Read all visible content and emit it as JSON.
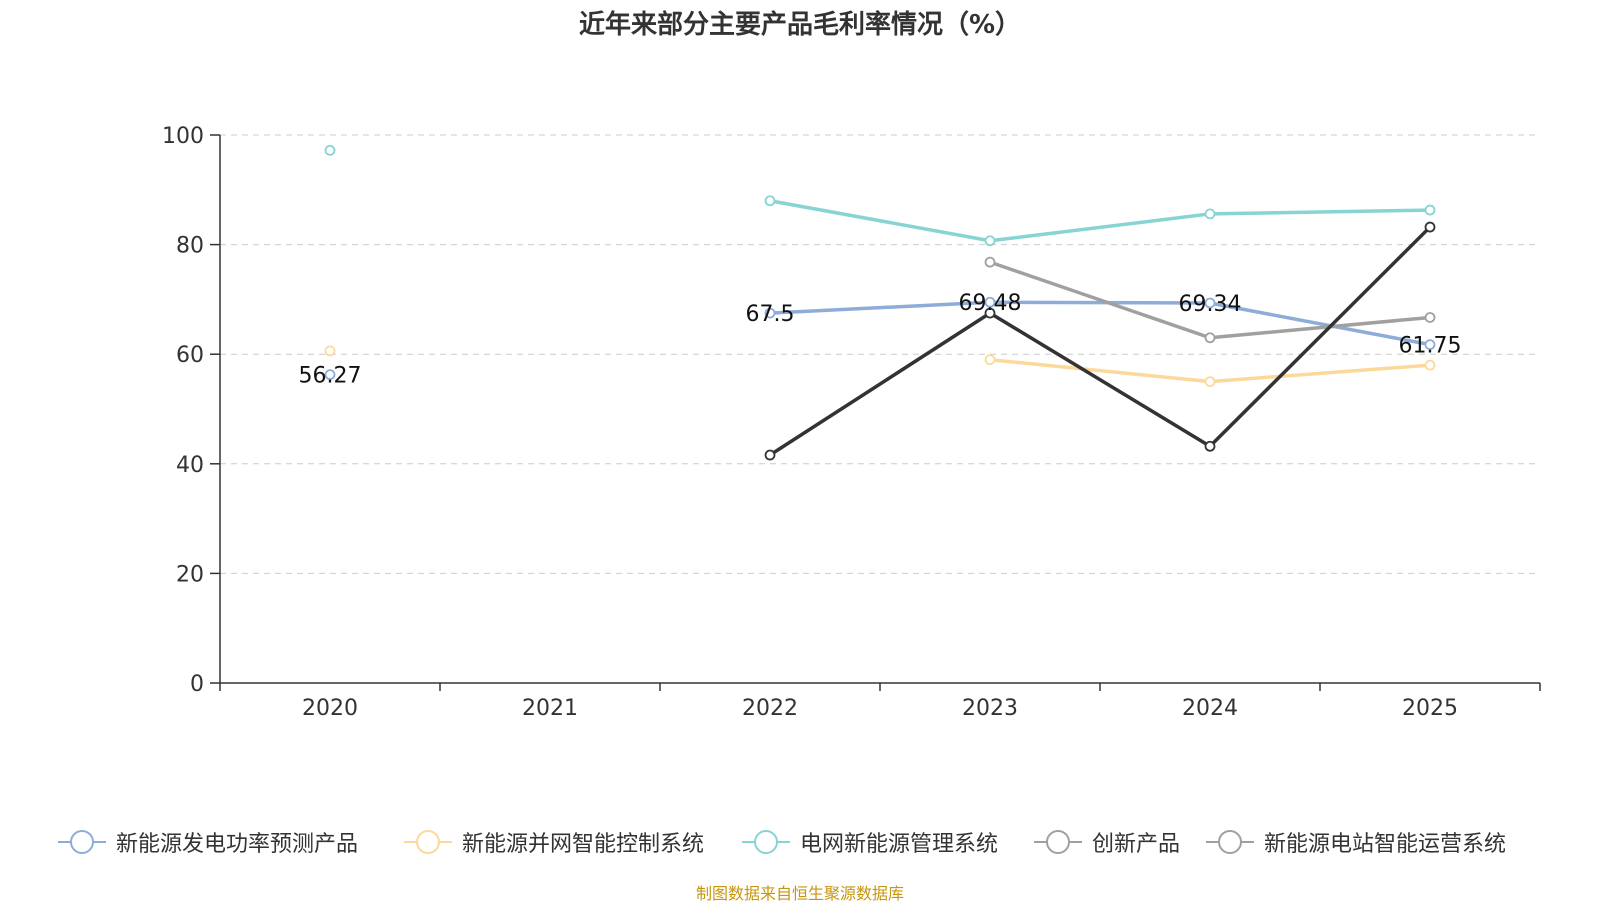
{
  "chart_data": {
    "type": "line",
    "title": "近年来部分主要产品毛利率情况（%）",
    "categories": [
      "2020",
      "2021",
      "2022",
      "2023",
      "2024",
      "2025"
    ],
    "ylim": [
      0,
      100
    ],
    "yticks": [
      0,
      20,
      40,
      60,
      80,
      100
    ],
    "grid": true,
    "legend_position": "bottom",
    "series": [
      {
        "name": "新能源发电功率预测产品",
        "color": "#8eacd8",
        "values": [
          56.27,
          null,
          67.5,
          69.48,
          69.34,
          61.75
        ],
        "labeled": true
      },
      {
        "name": "新能源并网智能控制系统",
        "color": "#fcd99a",
        "values": [
          60.6,
          null,
          null,
          59.0,
          55.0,
          58.0
        ],
        "labeled": false
      },
      {
        "name": "电网新能源管理系统",
        "color": "#86d4d4",
        "values": [
          97.2,
          null,
          88.0,
          80.7,
          85.6,
          86.3
        ],
        "labeled": false
      },
      {
        "name": "创新产品",
        "color": "#a0a0a0",
        "values": [
          null,
          null,
          null,
          76.8,
          63.0,
          66.7
        ],
        "labeled": false
      },
      {
        "name": "新能源电站智能运营系统",
        "color": "#333333",
        "values": [
          null,
          null,
          41.6,
          67.5,
          43.2,
          83.2
        ],
        "labeled": false
      }
    ],
    "data_labels": [
      {
        "category": "2020",
        "text": "56.27"
      },
      {
        "category": "2022",
        "text": "67.5"
      },
      {
        "category": "2023",
        "text": "69.48"
      },
      {
        "category": "2024",
        "text": "69.34"
      },
      {
        "category": "2025",
        "text": "61.75"
      }
    ]
  },
  "legend_marker_colors": [
    "#8eacd8",
    "#fcd99a",
    "#86d4d4",
    "#a0a0a0",
    "#a0a0a0"
  ],
  "source_note": "制图数据来自恒生聚源数据库"
}
